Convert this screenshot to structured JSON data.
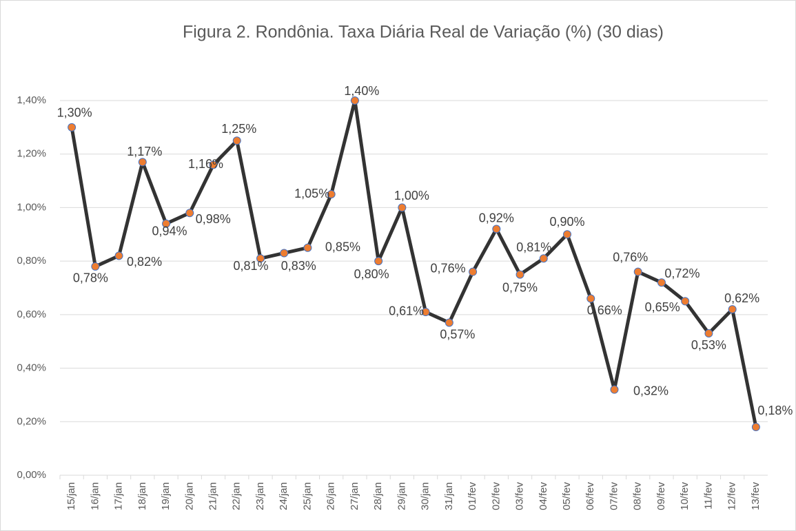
{
  "chart_data": {
    "type": "line",
    "title": "Figura 2. Rondônia. Taxa Diária Real de Variação (%)  (30 dias)",
    "categories": [
      "15/jan",
      "16/jan",
      "17/jan",
      "18/jan",
      "19/jan",
      "20/jan",
      "21/jan",
      "22/jan",
      "23/jan",
      "24/jan",
      "25/jan",
      "26/jan",
      "27/jan",
      "28/jan",
      "29/jan",
      "30/jan",
      "31/jan",
      "01/fev",
      "02/fev",
      "03/fev",
      "04/fev",
      "05/fev",
      "06/fev",
      "07/fev",
      "08/fev",
      "09/fev",
      "10/fev",
      "11/fev",
      "12/fev",
      "13/fev"
    ],
    "series": [
      {
        "color": "#333333",
        "marker_color": "#ed7d31",
        "marker_edge": "#4472c4",
        "values": [
          1.3,
          0.78,
          0.82,
          1.17,
          0.94,
          0.98,
          1.16,
          1.25,
          0.81,
          0.83,
          0.85,
          1.05,
          1.4,
          0.8,
          1.0,
          0.61,
          0.57,
          0.76,
          0.92,
          0.75,
          0.81,
          0.9,
          0.66,
          0.32,
          0.76,
          0.72,
          0.65,
          0.53,
          0.62,
          0.18
        ],
        "value_labels": [
          "1,30%",
          "0,78%",
          "0,82%",
          "1,17%",
          "0,94%",
          "0,98%",
          "1,16%",
          "1,25%",
          "0,81%",
          "0,83%",
          "0,85%",
          "1,05%",
          "1,40%",
          "0,80%",
          "1,00%",
          "0,61%",
          "0,57%",
          "0,76%",
          "0,92%",
          "0,75%",
          "0,81%",
          "0,90%",
          "0,66%",
          "0,32%",
          "0,76%",
          "0,72%",
          "0,65%",
          "0,53%",
          "0,62%",
          "0,18%"
        ]
      }
    ],
    "ylim": [
      0,
      1.4
    ],
    "yticks": [
      {
        "value": 0,
        "label": "0,00%"
      },
      {
        "value": 0.2,
        "label": "0,20%"
      },
      {
        "value": 0.4,
        "label": "0,40%"
      },
      {
        "value": 0.6,
        "label": "0,60%"
      },
      {
        "value": 0.8,
        "label": "0,80%"
      },
      {
        "value": 1.0,
        "label": "1,00%"
      },
      {
        "value": 1.2,
        "label": "1,20%"
      },
      {
        "value": 1.4,
        "label": "1,40%"
      }
    ],
    "grid": true
  }
}
